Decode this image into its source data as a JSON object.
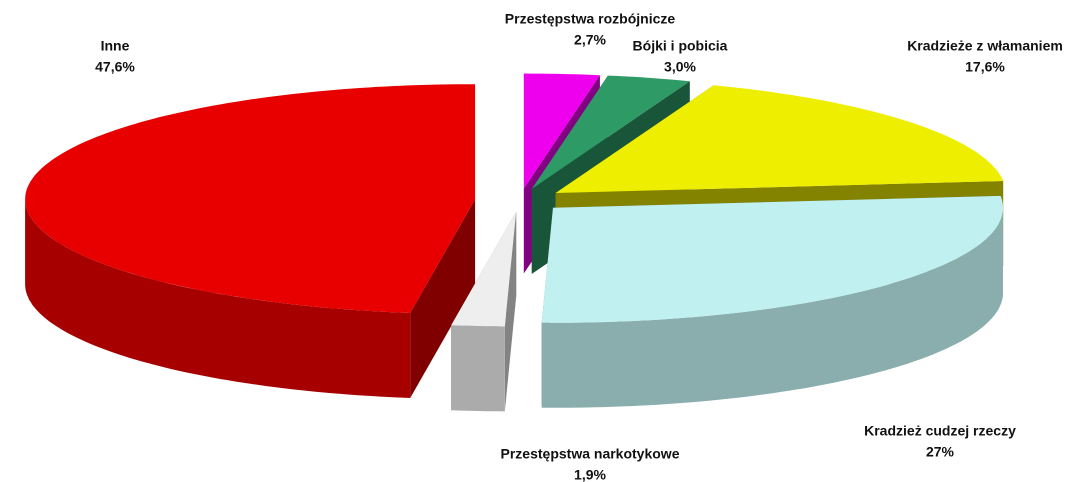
{
  "chart_data": {
    "type": "pie",
    "categories": [
      "Przestępstwa rozbójnicze",
      "Bójki i pobicia",
      "Kradzieże z włamaniem",
      "Kradzież cudzej rzeczy",
      "Przestępstwa narkotykowe",
      "Inne"
    ],
    "values": [
      2.7,
      3.0,
      17.6,
      27,
      1.9,
      47.6
    ],
    "value_labels": [
      "2,7%",
      "3,0%",
      "17,6%",
      "27%",
      "1,9%",
      "47,6%"
    ],
    "colors": [
      "#ee00ee",
      "#2e9a66",
      "#eeee00",
      "#c0f0f0",
      "#eeeeee",
      "#e80000"
    ]
  }
}
